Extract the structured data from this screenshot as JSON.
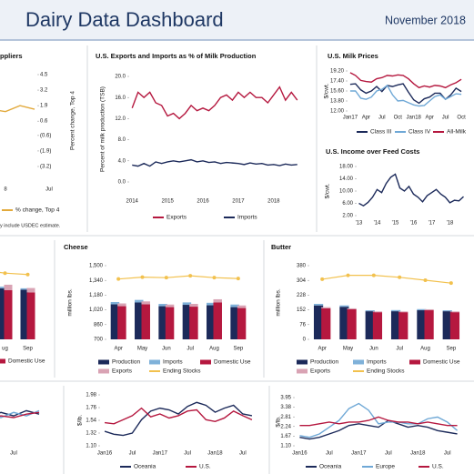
{
  "header": {
    "title": "Dairy Data Dashboard",
    "date": "November 2018"
  },
  "chart_data": [
    {
      "type": "line",
      "title": "ppliers",
      "y2label": "Percent change, Top 4",
      "note": "y include USDEC estimate.",
      "categories": [
        null,
        "8",
        null,
        null,
        "Jul"
      ],
      "series": [
        {
          "name": "% change, Top 4",
          "color": "#e2a93b",
          "axis": "y2",
          "values": [
            1.6,
            1.4,
            1.9,
            1.6,
            null
          ]
        }
      ],
      "y2lim": [
        -3.2,
        4.5
      ],
      "y2ticks": [
        4.5,
        3.2,
        1.9,
        0.6,
        {
          "value": -0.6,
          "label": "(0.6)"
        },
        {
          "value": -1.9,
          "label": "(1.9)"
        },
        {
          "value": -3.2,
          "label": "(3.2)"
        }
      ]
    },
    {
      "type": "line",
      "title": "U.S. Exports and Imports as % of Milk Production",
      "ylabel": "Percent of milk production (TSB)",
      "categories": [
        "2014",
        null,
        null,
        null,
        null,
        null,
        "2015",
        null,
        null,
        null,
        null,
        null,
        "2016",
        null,
        null,
        null,
        null,
        null,
        "2017",
        null,
        null,
        null,
        null,
        null,
        "2018",
        null,
        null,
        null,
        null
      ],
      "series": [
        {
          "name": "Exports",
          "color": "#b5183f",
          "values": [
            14,
            17,
            16,
            17,
            15,
            14.5,
            12.5,
            13,
            12,
            13,
            14.5,
            13.5,
            14,
            13.5,
            14.5,
            16,
            16.5,
            15.5,
            17,
            16,
            17,
            16,
            16,
            15,
            16.5,
            18,
            15.5,
            17,
            15.5
          ]
        },
        {
          "name": "Imports",
          "color": "#1c2a5a",
          "values": [
            3.2,
            3,
            3.5,
            3,
            3.8,
            3.5,
            3.8,
            4,
            3.8,
            4,
            4.2,
            3.8,
            4,
            3.7,
            3.8,
            3.5,
            3.7,
            3.6,
            3.5,
            3.3,
            3.6,
            3.4,
            3.5,
            3.2,
            3.3,
            3.1,
            3.4,
            3.2,
            3.3
          ]
        }
      ],
      "ylim": [
        0,
        20
      ],
      "yticks": [
        {
          "value": 0,
          "label": "0.0"
        },
        {
          "value": 4,
          "label": "4.0"
        },
        {
          "value": 8,
          "label": "8.0"
        },
        {
          "value": 12,
          "label": "12.0"
        },
        {
          "value": 16,
          "label": "16.0"
        },
        {
          "value": 20,
          "label": "20.0"
        }
      ]
    },
    {
      "type": "line",
      "title": "U.S. Milk Prices",
      "ylabel": "$/cwt.",
      "categories": [
        "Jan17",
        null,
        null,
        "Apr",
        null,
        null,
        "Jul",
        null,
        null,
        "Oct",
        null,
        null,
        "Jan18",
        null,
        null,
        "Apr",
        null,
        null,
        "Jul",
        null,
        null,
        "Oct"
      ],
      "series": [
        {
          "name": "Class III",
          "color": "#1c2a5a",
          "values": [
            16.8,
            16.9,
            15.8,
            15.2,
            15.6,
            16.4,
            15.5,
            16.6,
            16.4,
            16.7,
            16.9,
            15.4,
            14.0,
            13.4,
            14.2,
            14.5,
            15.2,
            15.2,
            14.1,
            14.9,
            16.1,
            15.5
          ]
        },
        {
          "name": "Class IV",
          "color": "#6fa8d6",
          "values": [
            15.6,
            15.6,
            14.3,
            14.1,
            14.5,
            15.6,
            15.9,
            16.6,
            14.9,
            13.8,
            13.9,
            13.5,
            13.1,
            12.9,
            13.0,
            13.8,
            14.6,
            14.9,
            14.1,
            14.6,
            15.1,
            15.0
          ]
        },
        {
          "name": "All-Milk",
          "color": "#b5183f",
          "values": [
            18.9,
            18.4,
            17.5,
            17.3,
            17.2,
            17.8,
            18.0,
            18.4,
            18.3,
            18.5,
            18.4,
            17.8,
            16.9,
            16.2,
            16.5,
            16.3,
            16.6,
            16.5,
            16.2,
            16.7,
            17.1,
            17.7
          ]
        }
      ],
      "ylim": [
        12,
        19.2
      ],
      "yticks": [
        {
          "value": 12,
          "label": "12.00"
        },
        {
          "value": 13.8,
          "label": "13.80"
        },
        {
          "value": 15.6,
          "label": "15.60"
        },
        {
          "value": 17.4,
          "label": "17.40"
        },
        {
          "value": 19.2,
          "label": "19.20"
        }
      ]
    },
    {
      "type": "line",
      "title": "U.S. Income over Feed Costs",
      "ylabel": "$/cwt.",
      "categories": [
        "'13",
        null,
        null,
        null,
        "'14",
        null,
        null,
        null,
        "'15",
        null,
        null,
        null,
        "'16",
        null,
        null,
        null,
        "'17",
        null,
        null,
        null,
        "'18",
        null,
        null,
        null
      ],
      "series": [
        {
          "name": null,
          "color": "#1c2a5a",
          "values": [
            6,
            5.2,
            6.3,
            8,
            10.5,
            9.5,
            12.5,
            14.5,
            15.5,
            11,
            10,
            11.5,
            9,
            8,
            6.5,
            8.5,
            9.5,
            10.5,
            9,
            8,
            6.2,
            7,
            6.8,
            8.2
          ]
        }
      ],
      "ylim": [
        2,
        18
      ],
      "yticks": [
        {
          "value": 2,
          "label": "2.00"
        },
        {
          "value": 6,
          "label": "6.00"
        },
        {
          "value": 10,
          "label": "10.00"
        },
        {
          "value": 14,
          "label": "14.00"
        },
        {
          "value": 18,
          "label": "18.00"
        }
      ]
    },
    {
      "type": "bar",
      "categories": [
        null,
        "ug",
        "Sep"
      ],
      "series": [
        {
          "color": "#1c2a5a",
          "values": [
            190,
            185,
            180
          ]
        },
        {
          "color": "#7fb1d9",
          "values": [
            6,
            6,
            5
          ]
        },
        {
          "name": "Domestic Use",
          "color": "#b5183f",
          "values": [
            175,
            178,
            170
          ]
        },
        {
          "color": "#d9a3b4",
          "values": [
            18,
            20,
            16
          ]
        },
        {
          "type": "line",
          "color": "#f2c14e",
          "values": [
            250,
            240,
            235
          ]
        }
      ],
      "ylim": [
        0,
        300
      ]
    },
    {
      "type": "bar",
      "title": "Cheese",
      "ylabel": "million lbs.",
      "categories": [
        "Apr",
        "May",
        "Jun",
        "Jul",
        "Aug",
        "Sep"
      ],
      "series": [
        {
          "name": "Production",
          "color": "#1c2a5a",
          "values": [
            1080,
            1100,
            1060,
            1075,
            1070,
            1050
          ]
        },
        {
          "name": "Imports",
          "color": "#7fb1d9",
          "values": [
            25,
            28,
            25,
            26,
            27,
            28
          ]
        },
        {
          "name": "Domestic Use",
          "color": "#b5183f",
          "values": [
            1060,
            1080,
            1050,
            1055,
            1100,
            1040
          ]
        },
        {
          "name": "Exports",
          "color": "#d9a3b4",
          "values": [
            30,
            32,
            28,
            30,
            35,
            28
          ]
        },
        {
          "name": "Ending Stocks",
          "type": "line",
          "color": "#f2c14e",
          "values": [
            1355,
            1375,
            1370,
            1390,
            1370,
            1360
          ]
        }
      ],
      "ylim": [
        700,
        1500
      ],
      "yticks": [
        700,
        860,
        {
          "value": 1020,
          "label": "1,020"
        },
        {
          "value": 1180,
          "label": "1,180"
        },
        {
          "value": 1340,
          "label": "1,340"
        },
        {
          "value": 1500,
          "label": "1,500"
        }
      ]
    },
    {
      "type": "bar",
      "title": "Butter",
      "ylabel": "million lbs.",
      "categories": [
        "Apr",
        "May",
        "Jun",
        "Jul",
        "Aug",
        "Sep"
      ],
      "series": [
        {
          "name": "Production",
          "color": "#1c2a5a",
          "values": [
            175,
            168,
            145,
            145,
            150,
            145
          ]
        },
        {
          "name": "Imports",
          "color": "#7fb1d9",
          "values": [
            8,
            7,
            5,
            6,
            6,
            5
          ]
        },
        {
          "name": "Domestic Use",
          "color": "#b5183f",
          "values": [
            160,
            155,
            140,
            140,
            150,
            140
          ]
        },
        {
          "name": "Exports",
          "color": "#d9a3b4",
          "values": [
            6,
            5,
            4,
            4,
            5,
            4
          ]
        },
        {
          "name": "Ending Stocks",
          "type": "line",
          "color": "#f2c14e",
          "values": [
            310,
            330,
            330,
            320,
            305,
            290
          ]
        }
      ],
      "ylim": [
        0,
        380
      ],
      "yticks": [
        0,
        76,
        152,
        228,
        304,
        380
      ]
    },
    {
      "type": "line",
      "categories": [
        null,
        null,
        "Jul",
        null,
        null
      ],
      "series": [
        {
          "color": "#1c2a5a",
          "values": [
            5,
            6.5,
            5.5,
            7,
            6
          ]
        },
        {
          "color": "#6fa8d6",
          "values": [
            6,
            5,
            6.5,
            5.5,
            7
          ]
        },
        {
          "color": "#b5183f",
          "values": [
            4.5,
            5.5,
            5,
            6,
            6.5
          ]
        }
      ],
      "ylim": [
        0,
        10
      ]
    },
    {
      "type": "line",
      "ylabel": "$/lb.",
      "categories": [
        "Jan16",
        null,
        null,
        "Jul",
        null,
        null,
        "Jan17",
        null,
        null,
        "Jul",
        null,
        null,
        "Jan18",
        null,
        null,
        "Jul",
        null
      ],
      "series": [
        {
          "name": "Oceania",
          "color": "#1c2a5a",
          "values": [
            1.35,
            1.3,
            1.28,
            1.32,
            1.55,
            1.7,
            1.75,
            1.72,
            1.65,
            1.78,
            1.85,
            1.8,
            1.68,
            1.75,
            1.8,
            1.65,
            1.62
          ]
        },
        {
          "name": "U.S.",
          "color": "#b5183f",
          "values": [
            1.5,
            1.48,
            1.55,
            1.62,
            1.75,
            1.6,
            1.65,
            1.58,
            1.62,
            1.7,
            1.72,
            1.55,
            1.52,
            1.58,
            1.7,
            1.62,
            1.55
          ]
        }
      ],
      "ylim": [
        1.1,
        1.98
      ],
      "yticks": [
        {
          "value": 1.1,
          "label": "1.10"
        },
        {
          "value": 1.32,
          "label": "1.32"
        },
        {
          "value": 1.54,
          "label": "1.54"
        },
        {
          "value": 1.76,
          "label": "1.76"
        },
        {
          "value": 1.98,
          "label": "1.98"
        }
      ]
    },
    {
      "type": "line",
      "ylabel": "$/lb.",
      "categories": [
        "Jan16",
        null,
        null,
        "Jul",
        null,
        null,
        "Jan17",
        null,
        null,
        "Jul",
        null,
        null,
        "Jan18",
        null,
        null,
        "Jul",
        null
      ],
      "series": [
        {
          "name": "Oceania",
          "color": "#1c2a5a",
          "values": [
            1.6,
            1.5,
            1.6,
            1.8,
            2.0,
            2.3,
            2.4,
            2.3,
            2.2,
            2.6,
            2.4,
            2.2,
            2.3,
            2.2,
            2.0,
            1.9,
            1.8
          ]
        },
        {
          "name": "Europe",
          "color": "#6fa8d6",
          "values": [
            1.7,
            1.6,
            1.8,
            2.2,
            2.6,
            3.3,
            3.6,
            3.2,
            2.4,
            2.5,
            2.5,
            2.4,
            2.4,
            2.7,
            2.8,
            2.5,
            2.0
          ]
        },
        {
          "name": "U.S.",
          "color": "#b5183f",
          "values": [
            2.3,
            2.3,
            2.4,
            2.5,
            2.4,
            2.5,
            2.5,
            2.6,
            2.8,
            2.6,
            2.5,
            2.5,
            2.4,
            2.5,
            2.4,
            2.3,
            2.3
          ]
        }
      ],
      "ylim": [
        1.1,
        3.95
      ],
      "yticks": [
        {
          "value": 1.1,
          "label": "1.10"
        },
        {
          "value": 1.67,
          "label": "1.67"
        },
        {
          "value": 2.24,
          "label": "2.24"
        },
        {
          "value": 2.81,
          "label": "2.81"
        },
        {
          "value": 3.38,
          "label": "3.38"
        },
        {
          "value": 3.95,
          "label": "3.95"
        }
      ]
    }
  ]
}
